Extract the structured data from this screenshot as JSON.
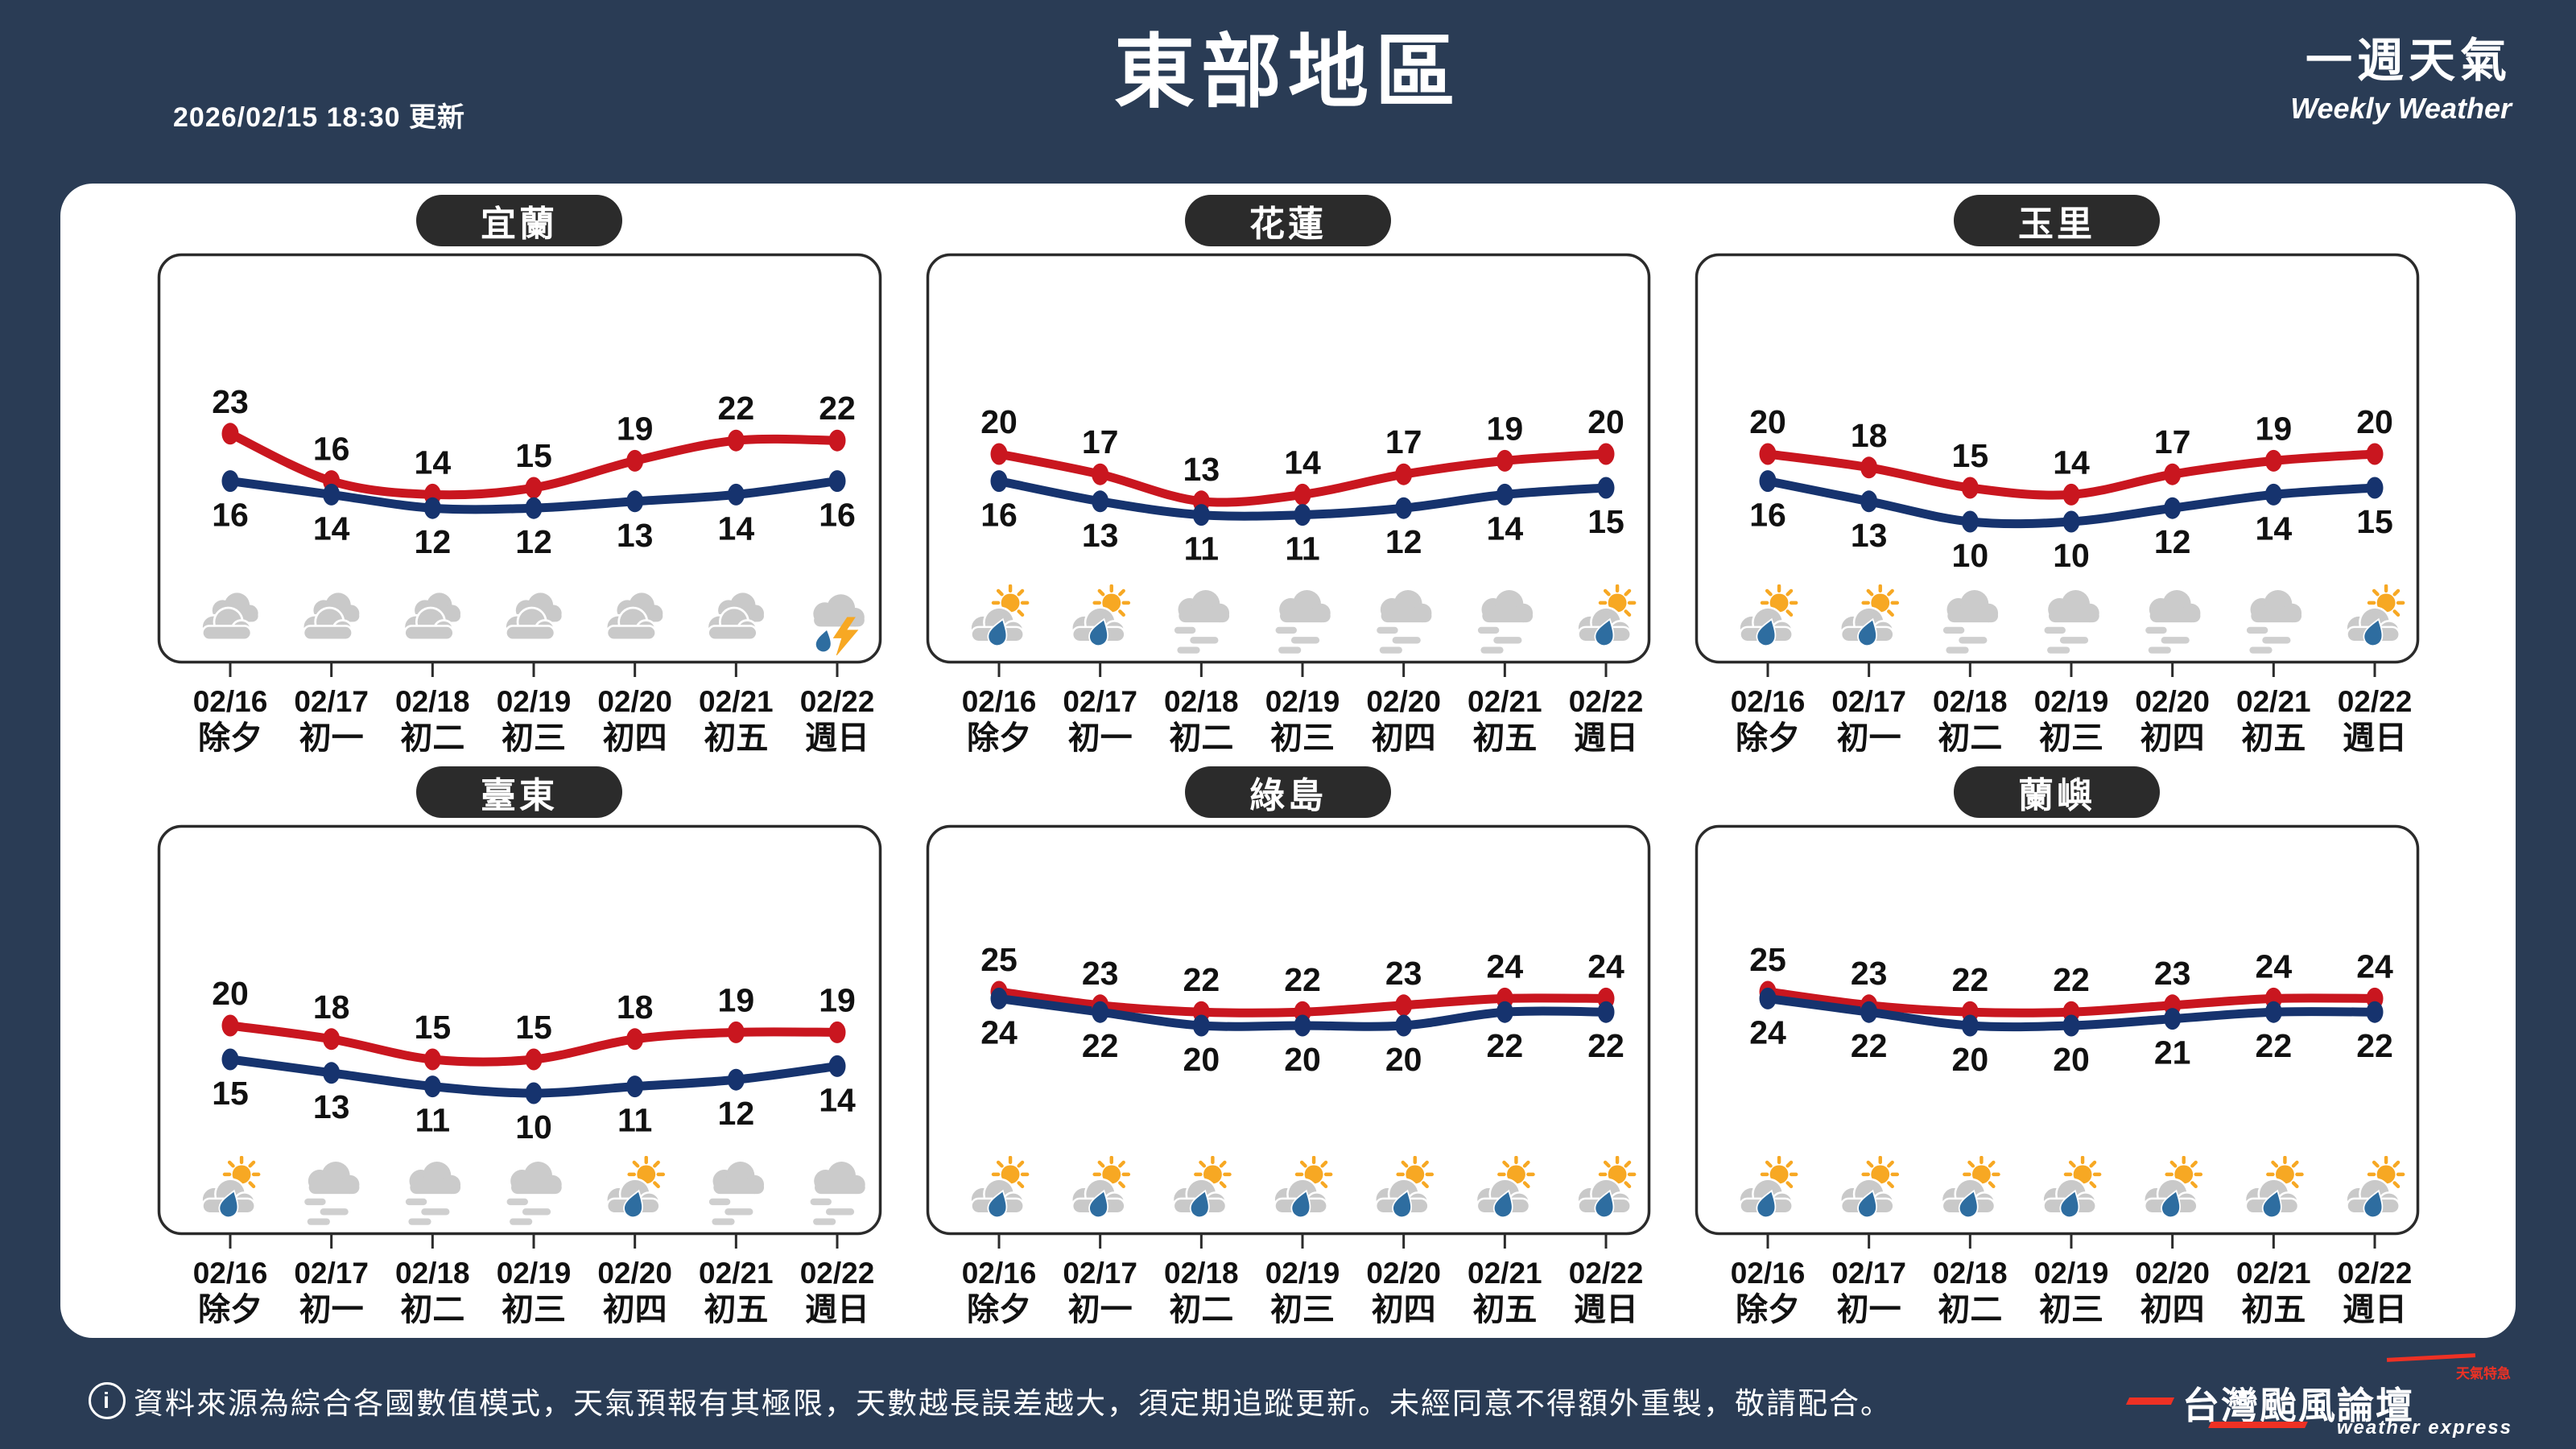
{
  "header": {
    "updated": "2026/02/15 18:30 更新",
    "title": "東部地區",
    "subtitle": "一週天氣",
    "subtitle_en": "Weekly Weather"
  },
  "categories_dates": [
    "02/16",
    "02/17",
    "02/18",
    "02/19",
    "02/20",
    "02/21",
    "02/22"
  ],
  "categories_days": [
    "除夕",
    "初一",
    "初二",
    "初三",
    "初四",
    "初五",
    "週日"
  ],
  "chart_data": [
    {
      "type": "line",
      "name": "宜蘭",
      "series": [
        {
          "name": "high",
          "values": [
            23,
            16,
            14,
            15,
            19,
            22,
            22
          ]
        },
        {
          "name": "low",
          "values": [
            16,
            14,
            12,
            12,
            13,
            14,
            16
          ]
        }
      ],
      "icons": [
        "cloudy",
        "cloudy",
        "cloudy",
        "cloudy",
        "cloudy",
        "cloudy",
        "thunderstorm"
      ]
    },
    {
      "type": "line",
      "name": "花蓮",
      "series": [
        {
          "name": "high",
          "values": [
            20,
            17,
            13,
            14,
            17,
            19,
            20
          ]
        },
        {
          "name": "low",
          "values": [
            16,
            13,
            11,
            11,
            12,
            14,
            15
          ]
        }
      ],
      "icons": [
        "partly-sunny-rain",
        "partly-sunny-rain",
        "fog",
        "fog",
        "fog",
        "fog",
        "partly-sunny-rain"
      ]
    },
    {
      "type": "line",
      "name": "玉里",
      "series": [
        {
          "name": "high",
          "values": [
            20,
            18,
            15,
            14,
            17,
            19,
            20
          ]
        },
        {
          "name": "low",
          "values": [
            16,
            13,
            10,
            10,
            12,
            14,
            15
          ]
        }
      ],
      "icons": [
        "partly-sunny-rain",
        "partly-sunny-rain",
        "fog",
        "fog",
        "fog",
        "fog",
        "partly-sunny-rain"
      ]
    },
    {
      "type": "line",
      "name": "臺東",
      "series": [
        {
          "name": "high",
          "values": [
            20,
            18,
            15,
            15,
            18,
            19,
            19
          ]
        },
        {
          "name": "low",
          "values": [
            15,
            13,
            11,
            10,
            11,
            12,
            14
          ]
        }
      ],
      "icons": [
        "partly-sunny-rain",
        "fog",
        "fog",
        "fog",
        "partly-sunny-rain",
        "fog",
        "fog"
      ]
    },
    {
      "type": "line",
      "name": "綠島",
      "series": [
        {
          "name": "high",
          "values": [
            25,
            23,
            22,
            22,
            23,
            24,
            24
          ]
        },
        {
          "name": "low",
          "values": [
            24,
            22,
            20,
            20,
            20,
            22,
            22
          ]
        }
      ],
      "icons": [
        "partly-sunny-rain",
        "partly-sunny-rain",
        "partly-sunny-rain",
        "partly-sunny-rain",
        "partly-sunny-rain",
        "partly-sunny-rain",
        "partly-sunny-rain"
      ]
    },
    {
      "type": "line",
      "name": "蘭嶼",
      "series": [
        {
          "name": "high",
          "values": [
            25,
            23,
            22,
            22,
            23,
            24,
            24
          ]
        },
        {
          "name": "low",
          "values": [
            24,
            22,
            20,
            20,
            21,
            22,
            22
          ]
        }
      ],
      "icons": [
        "partly-sunny-rain",
        "partly-sunny-rain",
        "partly-sunny-rain",
        "partly-sunny-rain",
        "partly-sunny-rain",
        "partly-sunny-rain",
        "partly-sunny-rain"
      ]
    }
  ],
  "footer": {
    "note": "資料來源為綜合各國數值模式，天氣預報有其極限，天數越長誤差越大，須定期追蹤更新。未經同意不得額外重製，敬請配合。",
    "logo_main": "台灣颱風論壇",
    "logo_en": "weather express",
    "logo_tagline": "天氣特急"
  },
  "colors": {
    "background": "#2a3c55",
    "high_line": "#c9161f",
    "low_line": "#16336e",
    "label": "#111111",
    "panel_border": "#2b2b2b",
    "accent_red": "#ee3124",
    "cloud": "#c9c9c9",
    "fog_bar": "#cfcfcf",
    "sun": "#f7a823",
    "rain_drop": "#2e6da0"
  }
}
